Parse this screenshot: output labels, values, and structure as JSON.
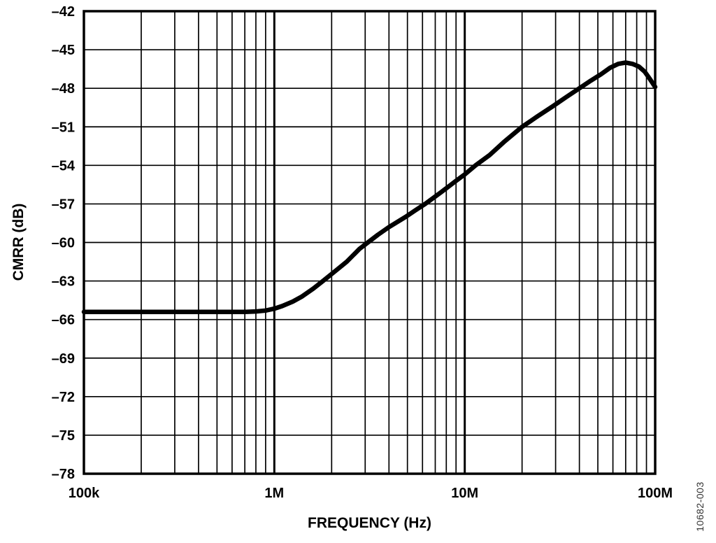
{
  "figure": {
    "id_label": "10682-003",
    "background_color": "#ffffff",
    "curve_color": "#000000",
    "grid_color": "#000000"
  },
  "chart_data": {
    "type": "line",
    "title": "",
    "xlabel": "FREQUENCY (Hz)",
    "ylabel": "CMRR (dB)",
    "x_scale": "log",
    "x_range_hz": [
      100000,
      100000000
    ],
    "y_range_db": [
      -78,
      -42
    ],
    "y_tick_step_db": 3,
    "legend": "none",
    "grid": {
      "horizontal_every_db": 3,
      "vertical_minor": "log subdivisions 2-9 each decade",
      "vertical_major_hz": [
        1000000,
        10000000
      ]
    },
    "x_ticks": [
      {
        "hz": 100000,
        "label": "100k"
      },
      {
        "hz": 1000000,
        "label": "1M"
      },
      {
        "hz": 10000000,
        "label": "10M"
      },
      {
        "hz": 100000000,
        "label": "100M"
      }
    ],
    "y_ticks": [
      {
        "db": -42,
        "label": "–42"
      },
      {
        "db": -45,
        "label": "–45"
      },
      {
        "db": -48,
        "label": "–48"
      },
      {
        "db": -51,
        "label": "–51"
      },
      {
        "db": -54,
        "label": "–54"
      },
      {
        "db": -57,
        "label": "–57"
      },
      {
        "db": -60,
        "label": "–60"
      },
      {
        "db": -63,
        "label": "–63"
      },
      {
        "db": -66,
        "label": "–66"
      },
      {
        "db": -69,
        "label": "–69"
      },
      {
        "db": -72,
        "label": "–72"
      },
      {
        "db": -75,
        "label": "–75"
      },
      {
        "db": -78,
        "label": "–78"
      }
    ],
    "points_hz_db": [
      [
        100000,
        -65.4
      ],
      [
        150000,
        -65.4
      ],
      [
        200000,
        -65.4
      ],
      [
        300000,
        -65.4
      ],
      [
        400000,
        -65.4
      ],
      [
        500000,
        -65.4
      ],
      [
        600000,
        -65.4
      ],
      [
        700000,
        -65.4
      ],
      [
        800000,
        -65.37
      ],
      [
        900000,
        -65.3
      ],
      [
        1000000,
        -65.15
      ],
      [
        1100000,
        -64.95
      ],
      [
        1250000,
        -64.6
      ],
      [
        1400000,
        -64.2
      ],
      [
        1600000,
        -63.6
      ],
      [
        1800000,
        -63.0
      ],
      [
        2100000,
        -62.2
      ],
      [
        2400000,
        -61.5
      ],
      [
        2800000,
        -60.5
      ],
      [
        3100000,
        -60.0
      ],
      [
        3500000,
        -59.4
      ],
      [
        4000000,
        -58.8
      ],
      [
        4900000,
        -58.0
      ],
      [
        5500000,
        -57.5
      ],
      [
        6200000,
        -57.0
      ],
      [
        7500000,
        -56.1
      ],
      [
        9000000,
        -55.2
      ],
      [
        10000000,
        -54.7
      ],
      [
        11400000,
        -54.0
      ],
      [
        13500000,
        -53.2
      ],
      [
        16000000,
        -52.2
      ],
      [
        20000000,
        -51.0
      ],
      [
        24000000,
        -50.2
      ],
      [
        29000000,
        -49.4
      ],
      [
        34000000,
        -48.7
      ],
      [
        40000000,
        -48.0
      ],
      [
        46000000,
        -47.4
      ],
      [
        52000000,
        -46.9
      ],
      [
        58000000,
        -46.4
      ],
      [
        64000000,
        -46.1
      ],
      [
        70000000,
        -46.0
      ],
      [
        76000000,
        -46.1
      ],
      [
        82000000,
        -46.3
      ],
      [
        88000000,
        -46.7
      ],
      [
        94000000,
        -47.3
      ],
      [
        100000000,
        -47.9
      ]
    ]
  }
}
